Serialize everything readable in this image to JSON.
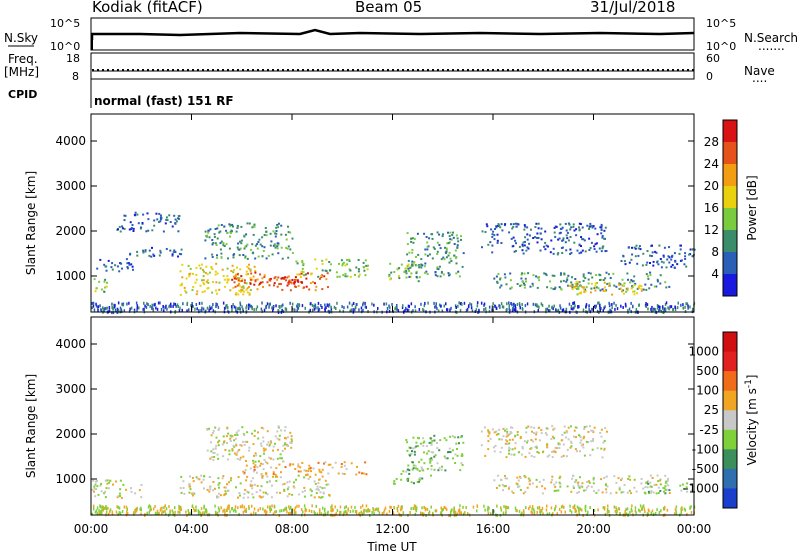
{
  "header": {
    "station": "Kodiak (fitACF)",
    "beam": "Beam 05",
    "date": "31/Jul/2018"
  },
  "status_panels": {
    "nsky_label": "N.Sky",
    "nsearch_label": "N.Search",
    "nsearch_dots": ".......",
    "freq_label": "Freq.",
    "freq_unit": "[MHz]",
    "nave_label": "Nave",
    "nave_dots": "....",
    "cpid_label": "CPID",
    "cpid_text": "normal (fast) 151 RF",
    "noise_ticks_left": [
      "10^5",
      "10^0"
    ],
    "noise_ticks_right": [
      "10^5",
      "10^0"
    ],
    "freq_ticks": [
      "18",
      "8"
    ],
    "nave_ticks": [
      "60",
      "0"
    ]
  },
  "chart_data": [
    {
      "type": "heatmap",
      "name": "power",
      "ylabel": "Slant Range [km]",
      "yticks": [
        1000,
        2000,
        3000,
        4000
      ],
      "ylim": [
        200,
        4600
      ],
      "x_ticks": [
        "00:00",
        "04:00",
        "08:00",
        "12:00",
        "16:00",
        "20:00",
        "00:00"
      ],
      "xlim_hours": [
        0,
        24
      ],
      "colorbar": {
        "label": "Power [dB]",
        "ticks": [
          "4",
          "8",
          "12",
          "16",
          "20",
          "24",
          "28"
        ],
        "colors": [
          "#1a1adf",
          "#2a5fb8",
          "#3a8d6a",
          "#7acc3f",
          "#e9d10e",
          "#f39d12",
          "#e5531a",
          "#d91313"
        ]
      },
      "regions": [
        {
          "t0": 0.0,
          "t1": 0.6,
          "r0": 600,
          "r1": 1000,
          "level": 3
        },
        {
          "t0": 0.2,
          "t1": 1.7,
          "r0": 1100,
          "r1": 1400,
          "level": 1
        },
        {
          "t0": 1.5,
          "t1": 4.0,
          "r0": 1450,
          "r1": 1650,
          "level": 1
        },
        {
          "t0": 1.0,
          "t1": 3.5,
          "r0": 2000,
          "r1": 2450,
          "level": 1
        },
        {
          "t0": 3.5,
          "t1": 6.5,
          "r0": 600,
          "r1": 1300,
          "level": 4
        },
        {
          "t0": 5.5,
          "t1": 9.5,
          "r0": 700,
          "r1": 1100,
          "level": 6
        },
        {
          "t0": 6.5,
          "t1": 8.5,
          "r0": 800,
          "r1": 1000,
          "level": 7
        },
        {
          "t0": 4.5,
          "t1": 8.0,
          "r0": 1400,
          "r1": 2200,
          "level": 2
        },
        {
          "t0": 8.0,
          "t1": 11.0,
          "r0": 1000,
          "r1": 1400,
          "level": 3
        },
        {
          "t0": 11.8,
          "t1": 13.2,
          "r0": 900,
          "r1": 1300,
          "level": 3
        },
        {
          "t0": 12.5,
          "t1": 14.8,
          "r0": 1000,
          "r1": 2000,
          "level": 2
        },
        {
          "t0": 15.5,
          "t1": 20.5,
          "r0": 1500,
          "r1": 2200,
          "level": 1
        },
        {
          "t0": 16.0,
          "t1": 23.0,
          "r0": 700,
          "r1": 1100,
          "level": 2
        },
        {
          "t0": 19.0,
          "t1": 22.0,
          "r0": 600,
          "r1": 900,
          "level": 4
        },
        {
          "t0": 21.0,
          "t1": 24.0,
          "r0": 1200,
          "r1": 1700,
          "level": 1
        }
      ]
    },
    {
      "type": "heatmap",
      "name": "velocity",
      "ylabel": "Slant Range [km]",
      "yticks": [
        1000,
        2000,
        3000,
        4000
      ],
      "ylim": [
        200,
        4600
      ],
      "xlabel": "Time UT",
      "x_ticks": [
        "00:00",
        "04:00",
        "08:00",
        "12:00",
        "16:00",
        "20:00",
        "00:00"
      ],
      "xlim_hours": [
        0,
        24
      ],
      "colorbar": {
        "label": "Velocity [m s",
        "label_sup": "-1",
        "label_end": "]",
        "ticks": [
          "1000",
          "500",
          "100",
          "25",
          "-25",
          "-100",
          "-500",
          "-1000"
        ],
        "colors": [
          "#1a3fcc",
          "#2f6fb0",
          "#3b8f5a",
          "#7fd13a",
          "#c8c8c8",
          "#f0a623",
          "#f06b1a",
          "#e22020",
          "#d01010"
        ]
      },
      "regions": [
        {
          "t0": 0.0,
          "t1": 2.0,
          "r0": 600,
          "r1": 1000,
          "level": 4
        },
        {
          "t0": 3.5,
          "t1": 9.5,
          "r0": 600,
          "r1": 1100,
          "level": 4
        },
        {
          "t0": 4.5,
          "t1": 8.0,
          "r0": 1400,
          "r1": 2200,
          "level": 4
        },
        {
          "t0": 6.0,
          "t1": 8.0,
          "r0": 1100,
          "r1": 1400,
          "level": 5
        },
        {
          "t0": 8.0,
          "t1": 11.0,
          "r0": 1100,
          "r1": 1400,
          "level": 5
        },
        {
          "t0": 12.0,
          "t1": 13.5,
          "r0": 900,
          "r1": 1300,
          "level": 3
        },
        {
          "t0": 12.5,
          "t1": 14.8,
          "r0": 1200,
          "r1": 2000,
          "level": 3
        },
        {
          "t0": 15.5,
          "t1": 20.5,
          "r0": 1500,
          "r1": 2200,
          "level": 4
        },
        {
          "t0": 16.0,
          "t1": 23.0,
          "r0": 700,
          "r1": 1100,
          "level": 4
        },
        {
          "t0": 22.0,
          "t1": 24.0,
          "r0": 700,
          "r1": 950,
          "level": 3
        }
      ]
    }
  ]
}
